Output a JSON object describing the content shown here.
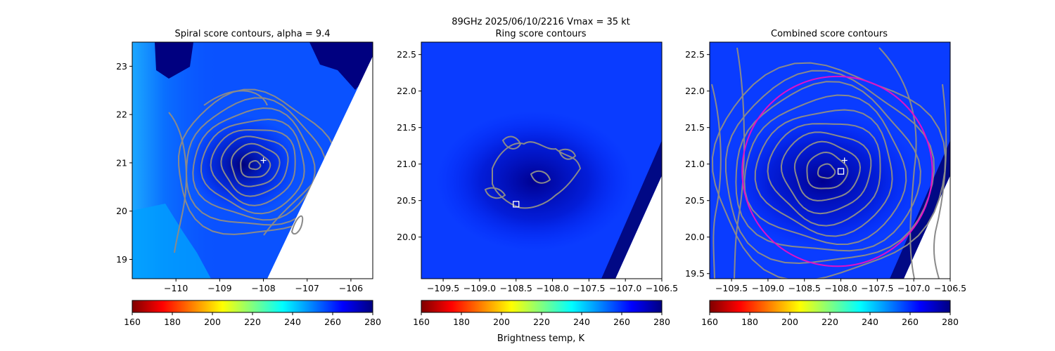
{
  "figure": {
    "suptitle_line1": "89GHz  2025/06/10/2216    Vmax = 35 kt",
    "colorbar_label": "Brightness temp, K",
    "colormap_colors": [
      "#800000",
      "#ff0000",
      "#ff8000",
      "#ffff00",
      "#80ff80",
      "#00ffff",
      "#0080ff",
      "#0000ff",
      "#000080"
    ]
  },
  "chart_data": [
    {
      "type": "heatmap",
      "title": "Spiral score contours, alpha =  9.4",
      "xlim": [
        -111.0,
        -105.5
      ],
      "ylim": [
        18.6,
        23.5
      ],
      "xticks": [
        -110,
        -109,
        -108,
        -107,
        -106
      ],
      "xtick_labels": [
        "−110",
        "−109",
        "−108",
        "−107",
        "−106"
      ],
      "yticks": [
        19,
        20,
        21,
        22,
        23
      ],
      "ytick_labels": [
        "19",
        "20",
        "21",
        "22",
        "23"
      ],
      "colorbar": {
        "min": 160,
        "max": 280,
        "ticks": [
          160,
          180,
          200,
          220,
          240,
          260,
          280
        ],
        "tick_labels": [
          "160",
          "180",
          "200",
          "220",
          "240",
          "260",
          "280"
        ]
      },
      "center_plus": {
        "x": -108.0,
        "y": 21.05
      },
      "contour_center": {
        "x": -108.2,
        "y": 20.95
      },
      "swath_edge": [
        {
          "x": -108.0,
          "y": 18.6
        },
        {
          "x": -106.0,
          "y": 21.9
        }
      ]
    },
    {
      "type": "heatmap",
      "title": "Ring score contours",
      "xlim": [
        -109.8,
        -106.5
      ],
      "ylim": [
        19.43,
        22.67
      ],
      "xticks": [
        -109.5,
        -109.0,
        -108.5,
        -108.0,
        -107.5,
        -107.0,
        -106.5
      ],
      "xtick_labels": [
        "−109.5",
        "−109.0",
        "−108.5",
        "−108.0",
        "−107.5",
        "−107.0",
        "−106.5"
      ],
      "yticks": [
        20.0,
        20.5,
        21.0,
        21.5,
        22.0,
        22.5
      ],
      "ytick_labels": [
        "20.0",
        "20.5",
        "21.0",
        "21.5",
        "22.0",
        "22.5"
      ],
      "colorbar": {
        "min": 160,
        "max": 280,
        "ticks": [
          160,
          180,
          200,
          220,
          240,
          260,
          280
        ],
        "tick_labels": [
          "160",
          "180",
          "200",
          "220",
          "240",
          "260",
          "280"
        ]
      },
      "center_square": {
        "x": -108.5,
        "y": 20.45
      }
    },
    {
      "type": "heatmap",
      "title": "Combined score contours",
      "xlim": [
        -109.8,
        -106.5
      ],
      "ylim": [
        19.43,
        22.67
      ],
      "xticks": [
        -109.5,
        -109.0,
        -108.5,
        -108.0,
        -107.5,
        -107.0,
        -106.5
      ],
      "xtick_labels": [
        "−109.5",
        "−109.0",
        "−108.5",
        "−108.0",
        "−107.5",
        "−107.0",
        "−106.5"
      ],
      "yticks": [
        19.5,
        20.0,
        20.5,
        21.0,
        21.5,
        22.0,
        22.5
      ],
      "ytick_labels": [
        "19.5",
        "20.0",
        "20.5",
        "21.0",
        "21.5",
        "22.0",
        "22.5"
      ],
      "colorbar": {
        "min": 160,
        "max": 280,
        "ticks": [
          160,
          180,
          200,
          220,
          240,
          260,
          280
        ],
        "tick_labels": [
          "160",
          "180",
          "200",
          "220",
          "240",
          "260",
          "280"
        ]
      },
      "center_plus": {
        "x": -107.95,
        "y": 21.05
      },
      "center_square": {
        "x": -108.0,
        "y": 20.9
      },
      "ring_circle": {
        "cx": -108.05,
        "cy": 20.9,
        "r_deg": 1.3
      },
      "contour_center": {
        "x": -108.2,
        "y": 20.9
      }
    }
  ]
}
